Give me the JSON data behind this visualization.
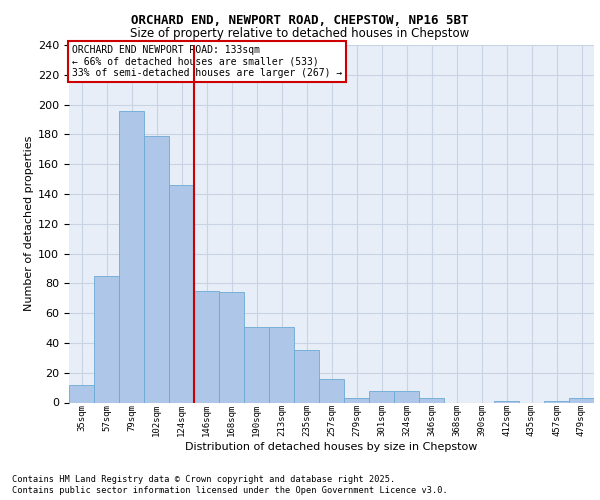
{
  "title_line1": "ORCHARD END, NEWPORT ROAD, CHEPSTOW, NP16 5BT",
  "title_line2": "Size of property relative to detached houses in Chepstow",
  "xlabel": "Distribution of detached houses by size in Chepstow",
  "ylabel": "Number of detached properties",
  "categories": [
    "35sqm",
    "57sqm",
    "79sqm",
    "102sqm",
    "124sqm",
    "146sqm",
    "168sqm",
    "190sqm",
    "213sqm",
    "235sqm",
    "257sqm",
    "279sqm",
    "301sqm",
    "324sqm",
    "346sqm",
    "368sqm",
    "390sqm",
    "412sqm",
    "435sqm",
    "457sqm",
    "479sqm"
  ],
  "values": [
    12,
    85,
    196,
    179,
    146,
    75,
    74,
    51,
    51,
    35,
    16,
    3,
    8,
    8,
    3,
    0,
    0,
    1,
    0,
    1,
    3
  ],
  "bar_color": "#aec6e8",
  "bar_edge_color": "#6aaad4",
  "grid_color": "#c8d4e4",
  "background_color": "#e8eef8",
  "vline_color": "#cc0000",
  "vline_x_idx": 4,
  "annotation_text": "ORCHARD END NEWPORT ROAD: 133sqm\n← 66% of detached houses are smaller (533)\n33% of semi-detached houses are larger (267) →",
  "annotation_box_edgecolor": "#cc0000",
  "footer_line1": "Contains HM Land Registry data © Crown copyright and database right 2025.",
  "footer_line2": "Contains public sector information licensed under the Open Government Licence v3.0.",
  "ylim_max": 240,
  "ytick_step": 20
}
